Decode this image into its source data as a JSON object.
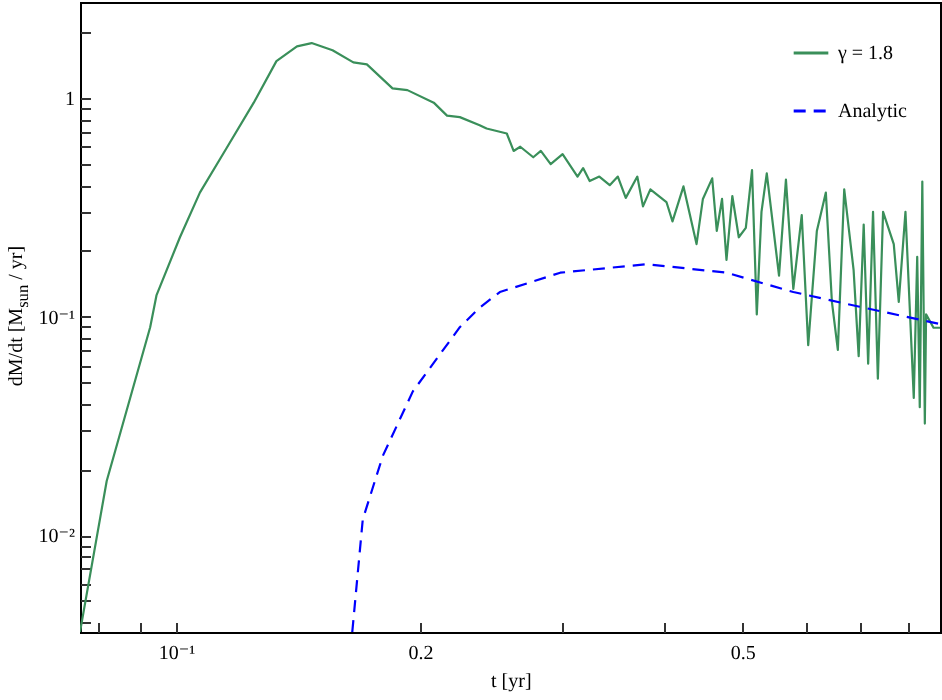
{
  "chart_data": {
    "type": "line",
    "xlabel": "t [yr]",
    "ylabel": "dM/dt [M$_{sun}$ / yr]",
    "log": "xy",
    "xlim": [
      0.0761,
      0.877
    ],
    "ylim": [
      0.0036,
      2.76
    ],
    "xticks": [
      {
        "value": 0.08,
        "label": null
      },
      {
        "value": 0.09,
        "label": null
      },
      {
        "value": 0.1,
        "label": "10⁻¹"
      },
      0.2,
      {
        "value": 0.3,
        "label": null
      },
      {
        "value": 0.4,
        "label": null
      },
      0.5,
      {
        "value": 0.6,
        "label": null
      },
      {
        "value": 0.7,
        "label": null
      },
      {
        "value": 0.8,
        "label": null
      }
    ],
    "yticks": [
      {
        "value": 0.004,
        "label": null
      },
      {
        "value": 0.005,
        "label": null
      },
      {
        "value": 0.006,
        "label": null
      },
      {
        "value": 0.007,
        "label": null
      },
      {
        "value": 0.008,
        "label": null
      },
      {
        "value": 0.009,
        "label": null
      },
      {
        "value": 0.01,
        "label": "10⁻²"
      },
      {
        "value": 0.02,
        "label": null
      },
      {
        "value": 0.03,
        "label": null
      },
      {
        "value": 0.04,
        "label": null
      },
      {
        "value": 0.05,
        "label": null
      },
      {
        "value": 0.06,
        "label": null
      },
      {
        "value": 0.07,
        "label": null
      },
      {
        "value": 0.08,
        "label": null
      },
      {
        "value": 0.09,
        "label": null
      },
      {
        "value": 0.1,
        "label": "10⁻¹"
      },
      {
        "value": 0.2,
        "label": null
      },
      {
        "value": 0.3,
        "label": null
      },
      {
        "value": 0.4,
        "label": null
      },
      {
        "value": 0.5,
        "label": null
      },
      {
        "value": 0.6,
        "label": null
      },
      {
        "value": 0.7,
        "label": null
      },
      {
        "value": 0.8,
        "label": null
      },
      {
        "value": 0.9,
        "label": null
      },
      1,
      {
        "value": 2,
        "label": null
      }
    ],
    "grid": false,
    "legend": "top right",
    "marker": "none",
    "series": [
      {
        "name": "γ = 1.8",
        "color": "#3a8f5a",
        "line_style": "solid",
        "x": [
          0.0761,
          0.0821,
          0.0929,
          0.0946,
          0.1011,
          0.107,
          0.1155,
          0.1247,
          0.133,
          0.141,
          0.147,
          0.156,
          0.1655,
          0.172,
          0.185,
          0.193,
          0.208,
          0.216,
          0.224,
          0.237,
          0.2417,
          0.256,
          0.261,
          0.266,
          0.276,
          0.282,
          0.29,
          0.3,
          0.313,
          0.318,
          0.324,
          0.333,
          0.343,
          0.351,
          0.359,
          0.371,
          0.377,
          0.385,
          0.403,
          0.41,
          0.423,
          0.439,
          0.447,
          0.459,
          0.465,
          0.472,
          0.478,
          0.486,
          0.495,
          0.505,
          0.514,
          0.521,
          0.528,
          0.536,
          0.555,
          0.566,
          0.578,
          0.592,
          0.603,
          0.618,
          0.634,
          0.645,
          0.656,
          0.668,
          0.686,
          0.696,
          0.706,
          0.715,
          0.725,
          0.735,
          0.746,
          0.769,
          0.78,
          0.795,
          0.814,
          0.822,
          0.828,
          0.834,
          0.84,
          0.843,
          0.861,
          0.877
        ],
        "values": [
          0.0036,
          0.0177,
          0.0895,
          0.1256,
          0.231,
          0.37,
          0.594,
          0.955,
          1.48,
          1.73,
          1.79,
          1.66,
          1.46,
          1.43,
          1.11,
          1.09,
          0.955,
          0.833,
          0.82,
          0.753,
          0.727,
          0.69,
          0.574,
          0.6,
          0.537,
          0.574,
          0.5,
          0.555,
          0.438,
          0.479,
          0.418,
          0.438,
          0.4,
          0.438,
          0.35,
          0.438,
          0.32,
          0.383,
          0.335,
          0.273,
          0.395,
          0.215,
          0.346,
          0.43,
          0.247,
          0.346,
          0.182,
          0.357,
          0.231,
          0.255,
          0.469,
          0.1025,
          0.302,
          0.453,
          0.154,
          0.424,
          0.134,
          0.292,
          0.074,
          0.247,
          0.37,
          0.117,
          0.0705,
          0.383,
          0.164,
          0.066,
          0.264,
          0.0609,
          0.302,
          0.052,
          0.302,
          0.215,
          0.117,
          0.302,
          0.0425,
          0.188,
          0.0385,
          0.416,
          0.0324,
          0.1025,
          0.089,
          0.089
        ]
      },
      {
        "name": "Analytic",
        "color": "#0000ff",
        "line_style": "dashed",
        "x": [
          0.165,
          0.17,
          0.18,
          0.196,
          0.224,
          0.237,
          0.251,
          0.298,
          0.381,
          0.478,
          0.578,
          0.698,
          0.877
        ],
        "values": [
          0.0036,
          0.0118,
          0.0231,
          0.0455,
          0.0895,
          0.11,
          0.1297,
          0.159,
          0.174,
          0.159,
          0.1297,
          0.111,
          0.0926
        ]
      }
    ]
  }
}
